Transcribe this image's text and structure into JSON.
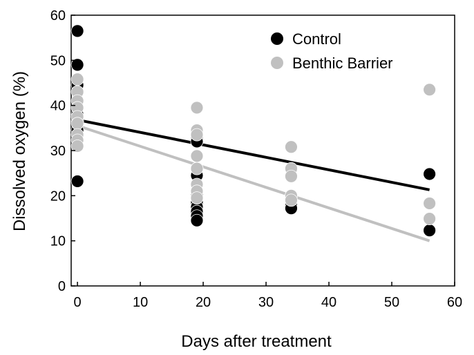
{
  "chart_data": {
    "type": "scatter",
    "title": "",
    "xlabel": "Days after treatment",
    "ylabel": "Dissolved oxygen (%)",
    "xlim": [
      -1,
      60
    ],
    "ylim": [
      0,
      60
    ],
    "xticks": [
      0,
      10,
      20,
      30,
      40,
      50,
      60
    ],
    "yticks": [
      0,
      10,
      20,
      30,
      40,
      50,
      60
    ],
    "grid": false,
    "legend_position": "top-right",
    "series": [
      {
        "name": "Control",
        "color": "#000000",
        "points": [
          {
            "x": 0,
            "y": 56.5
          },
          {
            "x": 0,
            "y": 49.0
          },
          {
            "x": 0,
            "y": 44.5
          },
          {
            "x": 0,
            "y": 38.0
          },
          {
            "x": 0,
            "y": 36.5
          },
          {
            "x": 0,
            "y": 34.5
          },
          {
            "x": 0,
            "y": 23.2
          },
          {
            "x": 19,
            "y": 33.0
          },
          {
            "x": 19,
            "y": 32.0
          },
          {
            "x": 19,
            "y": 26.0
          },
          {
            "x": 19,
            "y": 24.5
          },
          {
            "x": 19,
            "y": 20.0
          },
          {
            "x": 19,
            "y": 18.5
          },
          {
            "x": 19,
            "y": 17.5
          },
          {
            "x": 19,
            "y": 16.5
          },
          {
            "x": 19,
            "y": 15.5
          },
          {
            "x": 19,
            "y": 14.5
          },
          {
            "x": 34,
            "y": 19.0
          },
          {
            "x": 34,
            "y": 17.8
          },
          {
            "x": 34,
            "y": 17.2
          },
          {
            "x": 56,
            "y": 24.8
          },
          {
            "x": 56,
            "y": 12.3
          }
        ],
        "trend": {
          "x": [
            0,
            56
          ],
          "y": [
            36.8,
            21.3
          ]
        }
      },
      {
        "name": "Benthic Barrier",
        "color": "#c0c0c0",
        "points": [
          {
            "x": 0,
            "y": 45.8
          },
          {
            "x": 0,
            "y": 43.0
          },
          {
            "x": 0,
            "y": 41.0
          },
          {
            "x": 0,
            "y": 39.5
          },
          {
            "x": 0,
            "y": 37.5
          },
          {
            "x": 0,
            "y": 36.0
          },
          {
            "x": 0,
            "y": 33.5
          },
          {
            "x": 0,
            "y": 32.3
          },
          {
            "x": 0,
            "y": 31.0
          },
          {
            "x": 19,
            "y": 39.5
          },
          {
            "x": 19,
            "y": 34.5
          },
          {
            "x": 19,
            "y": 33.5
          },
          {
            "x": 19,
            "y": 28.8
          },
          {
            "x": 19,
            "y": 26.0
          },
          {
            "x": 19,
            "y": 22.5
          },
          {
            "x": 19,
            "y": 21.0
          },
          {
            "x": 19,
            "y": 19.5
          },
          {
            "x": 34,
            "y": 30.8
          },
          {
            "x": 34,
            "y": 26.0
          },
          {
            "x": 34,
            "y": 24.3
          },
          {
            "x": 34,
            "y": 20.0
          },
          {
            "x": 34,
            "y": 19.0
          },
          {
            "x": 56,
            "y": 43.5
          },
          {
            "x": 56,
            "y": 18.3
          },
          {
            "x": 56,
            "y": 14.9
          }
        ],
        "trend": {
          "x": [
            0,
            56
          ],
          "y": [
            35.5,
            10.0
          ]
        }
      }
    ]
  }
}
